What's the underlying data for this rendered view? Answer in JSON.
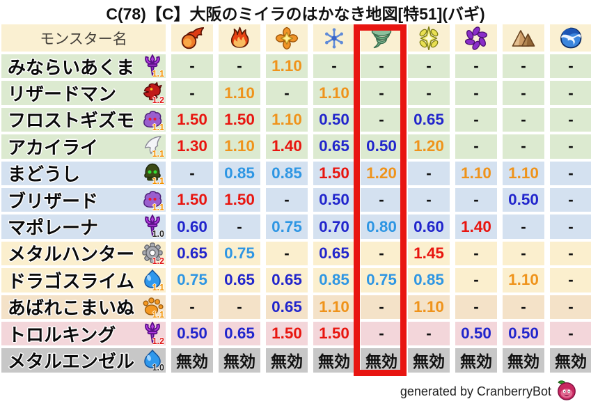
{
  "title": "C(78)【C】大阪のミイラのはかなき地図[特51](バギ)",
  "header": {
    "monster_col": "モンスター名",
    "elements": [
      "fireball",
      "flame",
      "burst",
      "snowflake",
      "tornado",
      "sparkle",
      "pinwheel",
      "mountain",
      "wave"
    ]
  },
  "highlight": {
    "column_index": 4,
    "element": "tornado"
  },
  "chart_data": {
    "type": "table",
    "columns": [
      "モンスター名",
      "fireball",
      "flame",
      "burst",
      "snowflake",
      "tornado",
      "sparkle",
      "pinwheel",
      "mountain",
      "wave"
    ],
    "rows": [
      {
        "name": "みならいあくま",
        "family": "demon",
        "level": "1.1",
        "bg": "green",
        "values": [
          "-",
          "-",
          "1.10",
          "-",
          "-",
          "-",
          "-",
          "-",
          "-"
        ]
      },
      {
        "name": "リザードマン",
        "family": "dragon",
        "level": "1.2",
        "bg": "green",
        "values": [
          "-",
          "1.10",
          "-",
          "1.10",
          "-",
          "-",
          "-",
          "-",
          "-"
        ]
      },
      {
        "name": "フロストギズモ",
        "family": "ghost",
        "level": "1.1",
        "bg": "green",
        "values": [
          "1.50",
          "1.50",
          "1.10",
          "0.50",
          "-",
          "0.65",
          "-",
          "-",
          "-"
        ]
      },
      {
        "name": "アカイライ",
        "family": "bird",
        "level": "1.1",
        "bg": "green",
        "values": [
          "1.30",
          "1.10",
          "1.40",
          "0.65",
          "0.50",
          "1.20",
          "-",
          "-",
          "-"
        ]
      },
      {
        "name": "まどうし",
        "family": "mage",
        "level": "1.1",
        "bg": "blue",
        "values": [
          "-",
          "0.85",
          "0.85",
          "1.50",
          "1.20",
          "-",
          "1.10",
          "1.10",
          "-"
        ]
      },
      {
        "name": "ブリザード",
        "family": "ghost",
        "level": "1.1",
        "bg": "blue",
        "values": [
          "1.50",
          "1.50",
          "-",
          "0.50",
          "-",
          "-",
          "-",
          "0.50",
          "-"
        ]
      },
      {
        "name": "マポレーナ",
        "family": "demon",
        "level": "1.0",
        "bg": "blue",
        "values": [
          "0.60",
          "-",
          "0.75",
          "0.70",
          "0.80",
          "0.60",
          "1.40",
          "-",
          "-"
        ]
      },
      {
        "name": "メタルハンター",
        "family": "machine",
        "level": "1.2",
        "bg": "cream",
        "values": [
          "0.65",
          "0.75",
          "-",
          "0.65",
          "-",
          "1.45",
          "-",
          "-",
          "-"
        ]
      },
      {
        "name": "ドラゴスライム",
        "family": "slime",
        "level": "1.1",
        "bg": "cream",
        "values": [
          "0.75",
          "0.65",
          "0.65",
          "0.85",
          "0.75",
          "0.85",
          "-",
          "1.10",
          "-"
        ]
      },
      {
        "name": "あばれこまいぬ",
        "family": "beast",
        "level": "1.1",
        "bg": "tan",
        "values": [
          "-",
          "-",
          "0.65",
          "1.10",
          "-",
          "1.10",
          "-",
          "-",
          "-"
        ]
      },
      {
        "name": "トロルキング",
        "family": "demon",
        "level": "1.2",
        "bg": "pink",
        "values": [
          "0.50",
          "0.65",
          "1.50",
          "1.50",
          "-",
          "-",
          "0.50",
          "0.50",
          "-"
        ]
      },
      {
        "name": "メタルエンゼル",
        "family": "slime",
        "level": "1.0",
        "bg": "gray",
        "values": [
          "無効",
          "無効",
          "無効",
          "無効",
          "無効",
          "無効",
          "無効",
          "無効",
          "無効"
        ]
      }
    ]
  },
  "footer": {
    "text": "generated by CranberryBot",
    "icon": "cranberry-icon"
  },
  "palette": {
    "value_red": "#e8150f",
    "value_orange": "#ef931b",
    "value_light_blue": "#2e96e3",
    "value_dark_blue": "#2125cc",
    "value_neutral": "#111111",
    "row_green": "#dcead0",
    "row_blue": "#d4e1f0",
    "row_cream": "#fbefce",
    "row_tan": "#f4e2c8",
    "row_pink": "#f3d6da",
    "row_gray": "#c7c7c7",
    "header_bg": "#faf0d2",
    "header_text": "#44403a",
    "highlight_box": "#e81511",
    "level_1_0": "#222222",
    "level_1_1": "#f29000",
    "level_1_2": "#e01818"
  }
}
